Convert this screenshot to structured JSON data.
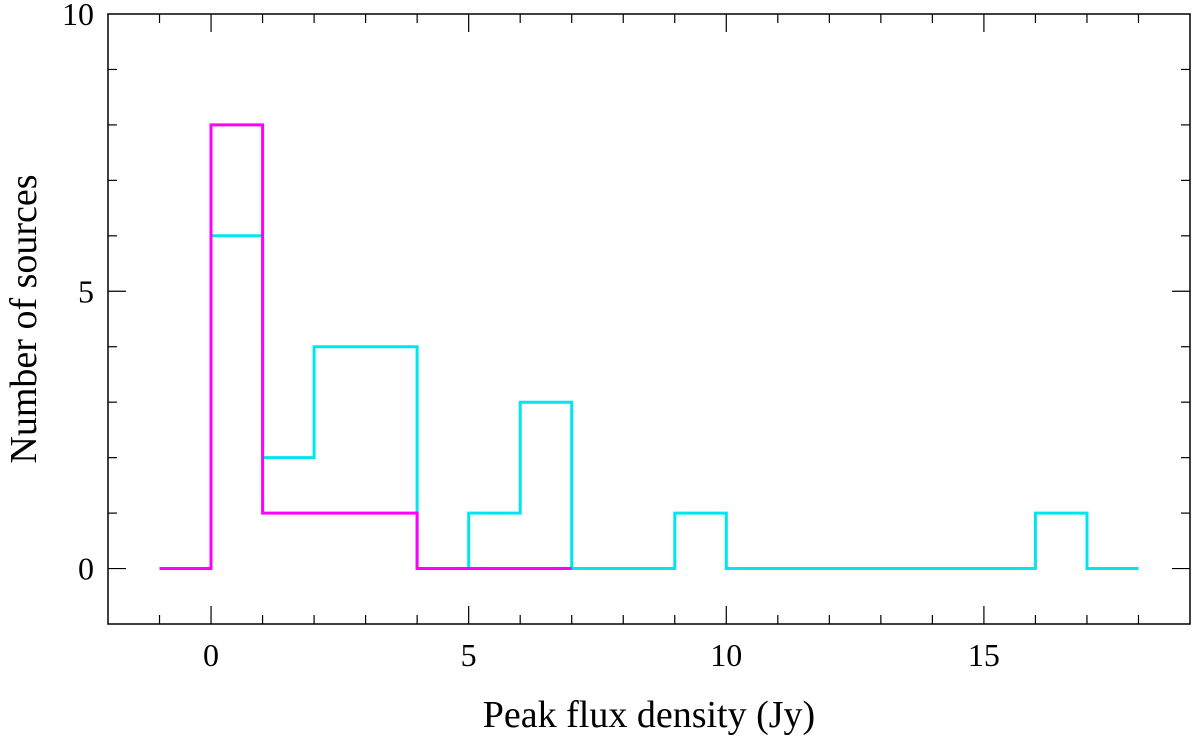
{
  "chart_data": {
    "type": "line",
    "step": true,
    "title": "",
    "xlabel": "Peak flux density (Jy)",
    "ylabel": "Number of sources",
    "xlim": [
      -2,
      19
    ],
    "ylim": [
      -1,
      10
    ],
    "x_ticks": [
      0,
      5,
      10,
      15
    ],
    "x_tick_labels": [
      "0",
      "5",
      "10",
      "15"
    ],
    "x_minor_step": 1,
    "y_ticks": [
      0,
      5,
      10
    ],
    "y_tick_labels": [
      "0",
      "5",
      "10"
    ],
    "y_minor_step": 1,
    "grid": false,
    "legend": "none",
    "series": [
      {
        "color": "#00e5ee",
        "x": [
          -1,
          0,
          0,
          1,
          1,
          2,
          2,
          4,
          4,
          5,
          5,
          6,
          6,
          7,
          7,
          9,
          9,
          10,
          10,
          16,
          16,
          17,
          17,
          18
        ],
        "y": [
          0,
          0,
          6,
          6,
          2,
          2,
          4,
          4,
          0,
          0,
          1,
          1,
          3,
          3,
          0,
          0,
          1,
          1,
          0,
          0,
          1,
          1,
          0,
          0
        ]
      },
      {
        "color": "#ff00ff",
        "x": [
          -1,
          0,
          0,
          1,
          1,
          4,
          4,
          7
        ],
        "y": [
          0,
          0,
          8,
          8,
          1,
          1,
          0,
          0
        ]
      }
    ]
  }
}
